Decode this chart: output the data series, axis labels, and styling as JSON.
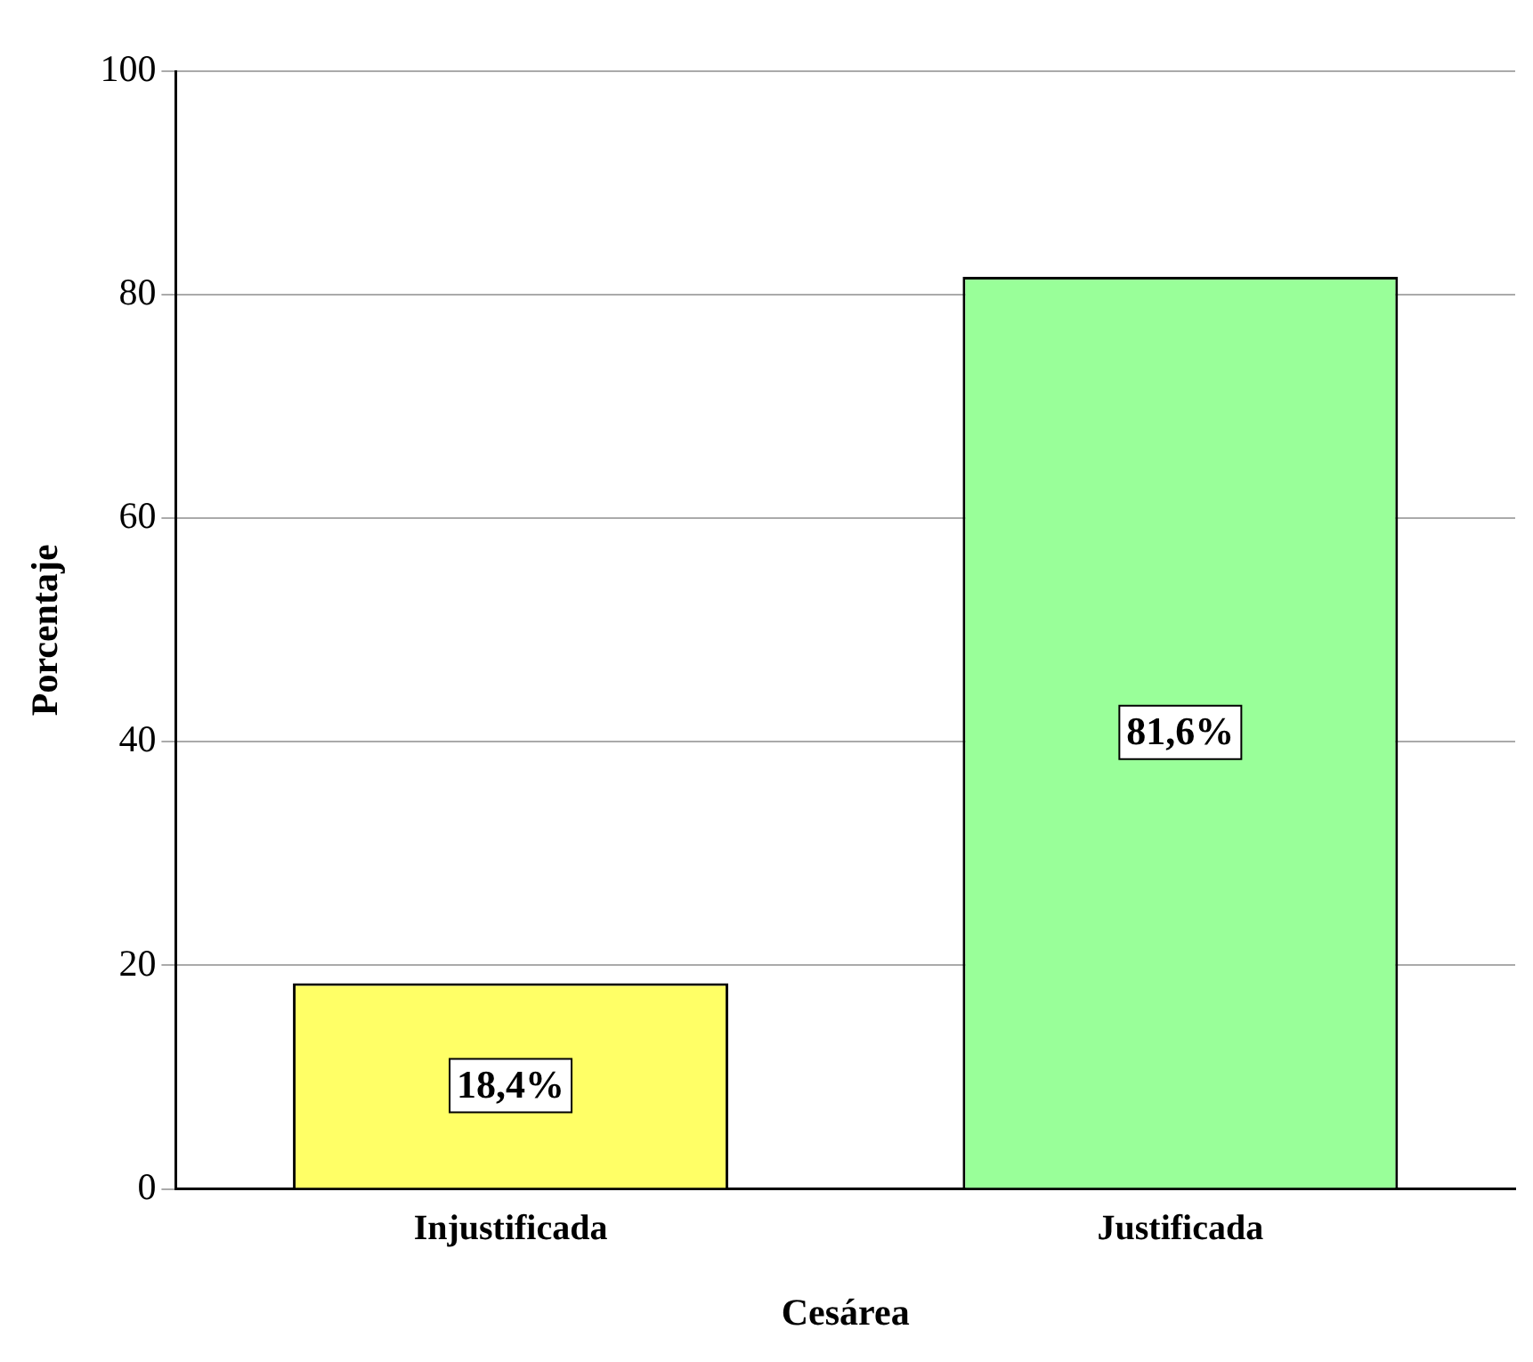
{
  "chart_data": {
    "type": "bar",
    "xlabel": "Cesárea",
    "ylabel": "Porcentaje",
    "categories": [
      "Injustificada",
      "Justificada"
    ],
    "values": [
      18.4,
      81.6
    ],
    "colors": [
      "#ffff66",
      "#99ff99"
    ],
    "value_labels": [
      "18,4%",
      "81,6%"
    ],
    "ylim": [
      0,
      100
    ],
    "yticks": [
      0,
      20,
      40,
      60,
      80,
      100
    ],
    "grid": "y",
    "legend": false
  }
}
